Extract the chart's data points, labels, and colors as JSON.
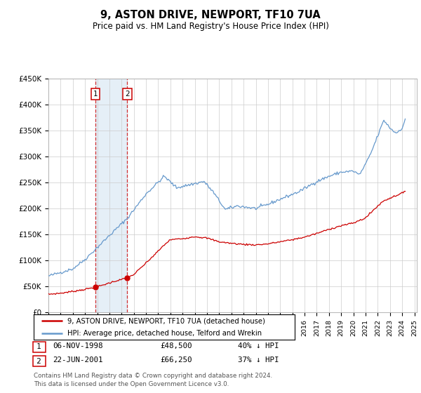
{
  "title": "9, ASTON DRIVE, NEWPORT, TF10 7UA",
  "subtitle": "Price paid vs. HM Land Registry's House Price Index (HPI)",
  "legend_label_red": "9, ASTON DRIVE, NEWPORT, TF10 7UA (detached house)",
  "legend_label_blue": "HPI: Average price, detached house, Telford and Wrekin",
  "footnote": "Contains HM Land Registry data © Crown copyright and database right 2024.\nThis data is licensed under the Open Government Licence v3.0.",
  "transaction1_label": "1",
  "transaction1_date": "06-NOV-1998",
  "transaction1_price": "£48,500",
  "transaction1_hpi": "40% ↓ HPI",
  "transaction2_label": "2",
  "transaction2_date": "22-JUN-2001",
  "transaction2_price": "£66,250",
  "transaction2_hpi": "37% ↓ HPI",
  "ylim": [
    0,
    450000
  ],
  "yticks": [
    0,
    50000,
    100000,
    150000,
    200000,
    250000,
    300000,
    350000,
    400000,
    450000
  ],
  "ytick_labels": [
    "£0",
    "£50K",
    "£100K",
    "£150K",
    "£200K",
    "£250K",
    "£300K",
    "£350K",
    "£400K",
    "£450K"
  ],
  "red_color": "#cc0000",
  "blue_color": "#6699cc",
  "shade_color": "#cce0f0",
  "transaction1_x": 1998.84,
  "transaction1_y": 48500,
  "transaction2_x": 2001.47,
  "transaction2_y": 66250,
  "xlim_left": 1995.0,
  "xlim_right": 2025.2
}
